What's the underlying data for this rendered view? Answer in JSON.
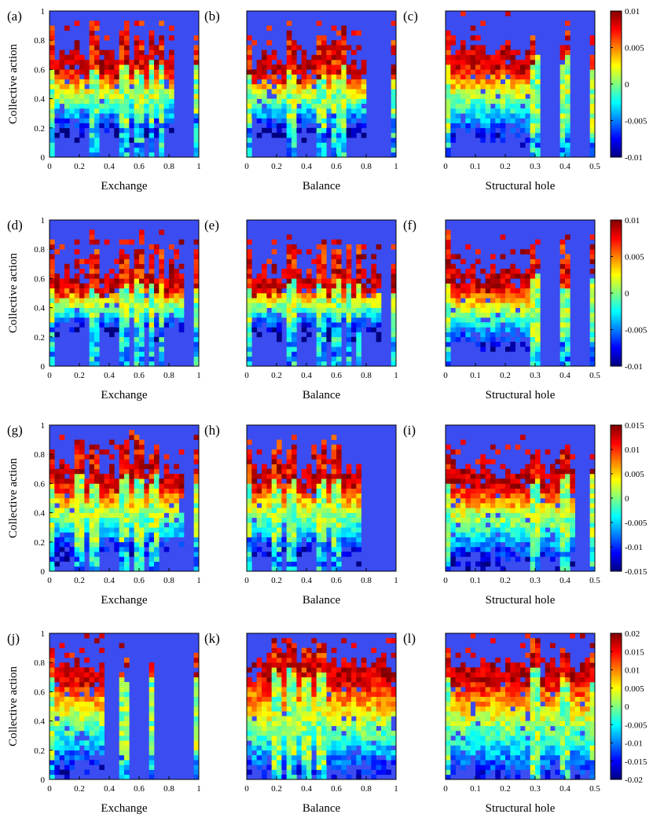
{
  "figure": {
    "background": "#ffffff",
    "plot_background": "#3b4cf0"
  },
  "colormap": "jet",
  "chart_data": [
    {
      "panel": "(a)",
      "type": "heatmap",
      "row": 0,
      "col": 0,
      "xlabel": "Exchange",
      "ylabel": "Collective action",
      "xlim": [
        0,
        1
      ],
      "ylim": [
        0,
        1
      ],
      "xticks": [
        "0",
        "0.2",
        "0.4",
        "0.6",
        "0.8",
        "1"
      ],
      "yticks": [
        "0",
        "0.2",
        "0.4",
        "0.6",
        "0.8",
        "1"
      ],
      "colorbar": {
        "min": -0.01,
        "max": 0.01,
        "ticks": [
          "0.01",
          "0.005",
          "0",
          "-0.005",
          "-0.01"
        ]
      },
      "pattern": {
        "band_top": 0.62,
        "band_center": 0.45,
        "band_bottom": 0.25,
        "x_extent": 0.82,
        "seed": 11
      },
      "spikes": [
        0.02,
        0.3,
        0.5,
        0.6,
        0.67,
        0.75,
        1.0
      ]
    },
    {
      "panel": "(b)",
      "type": "heatmap",
      "row": 0,
      "col": 1,
      "xlabel": "Balance",
      "ylabel": "",
      "xlim": [
        0,
        1
      ],
      "ylim": [
        0,
        1
      ],
      "xticks": [
        "0",
        "0.2",
        "0.4",
        "0.6",
        "0.8",
        "1"
      ],
      "yticks": [],
      "pattern": {
        "band_top": 0.6,
        "band_center": 0.45,
        "band_bottom": 0.25,
        "x_extent": 0.8,
        "seed": 23
      },
      "spikes": [
        0.02,
        0.3,
        0.5,
        0.6,
        0.66,
        1.0
      ]
    },
    {
      "panel": "(c)",
      "type": "heatmap",
      "row": 0,
      "col": 2,
      "xlabel": "Structural hole",
      "ylabel": "",
      "xlim": [
        0,
        0.5
      ],
      "ylim": [
        0,
        1
      ],
      "xticks": [
        "0",
        "0.1",
        "0.2",
        "0.3",
        "0.4",
        "0.5"
      ],
      "yticks": [],
      "pattern": {
        "band_top": 0.66,
        "band_center": 0.45,
        "band_bottom": 0.2,
        "x_extent": 0.3,
        "seed": 31
      },
      "spikes": [
        0.0,
        0.3,
        0.4,
        0.5
      ]
    },
    {
      "panel": "(d)",
      "type": "heatmap",
      "row": 1,
      "col": 0,
      "xlabel": "Exchange",
      "ylabel": "Collective action",
      "xlim": [
        0,
        1
      ],
      "ylim": [
        0,
        1
      ],
      "xticks": [
        "0",
        "0.2",
        "0.4",
        "0.6",
        "0.8",
        "1"
      ],
      "yticks": [
        "0",
        "0.2",
        "0.4",
        "0.6",
        "0.8",
        "1"
      ],
      "colorbar": {
        "min": -0.01,
        "max": 0.01,
        "ticks": [
          "0.01",
          "0.005",
          "0",
          "-0.005",
          "-0.01"
        ]
      },
      "pattern": {
        "band_top": 0.56,
        "band_center": 0.45,
        "band_bottom": 0.3,
        "x_extent": 0.9,
        "seed": 47
      },
      "spikes": [
        0.02,
        0.3,
        0.5,
        0.6,
        0.67,
        0.75,
        1.0
      ]
    },
    {
      "panel": "(e)",
      "type": "heatmap",
      "row": 1,
      "col": 1,
      "xlabel": "Balance",
      "ylabel": "",
      "xlim": [
        0,
        1
      ],
      "ylim": [
        0,
        1
      ],
      "xticks": [
        "0",
        "0.2",
        "0.4",
        "0.6",
        "0.8",
        "1"
      ],
      "yticks": [],
      "pattern": {
        "band_top": 0.56,
        "band_center": 0.45,
        "band_bottom": 0.3,
        "x_extent": 0.9,
        "seed": 53
      },
      "spikes": [
        0.02,
        0.3,
        0.5,
        0.6,
        0.67,
        0.75,
        1.0
      ]
    },
    {
      "panel": "(f)",
      "type": "heatmap",
      "row": 1,
      "col": 2,
      "xlabel": "Structural hole",
      "ylabel": "",
      "xlim": [
        0,
        0.5
      ],
      "ylim": [
        0,
        1
      ],
      "xticks": [
        "0",
        "0.1",
        "0.2",
        "0.3",
        "0.4",
        "0.5"
      ],
      "yticks": [],
      "pattern": {
        "band_top": 0.58,
        "band_center": 0.45,
        "band_bottom": 0.2,
        "x_extent": 0.3,
        "seed": 61
      },
      "spikes": [
        0.0,
        0.3,
        0.4,
        0.5
      ]
    },
    {
      "panel": "(g)",
      "type": "heatmap",
      "row": 2,
      "col": 0,
      "xlabel": "Exchange",
      "ylabel": "Collective action",
      "xlim": [
        0,
        1
      ],
      "ylim": [
        0,
        1
      ],
      "xticks": [
        "0",
        "0.2",
        "0.4",
        "0.6",
        "0.8",
        "1"
      ],
      "yticks": [
        "0",
        "0.2",
        "0.4",
        "0.6",
        "0.8",
        "1"
      ],
      "colorbar": {
        "min": -0.015,
        "max": 0.015,
        "ticks": [
          "0.015",
          "0.01",
          "0.005",
          "0",
          "-0.005",
          "-0.01",
          "-0.015"
        ]
      },
      "pattern": {
        "band_top": 0.62,
        "band_center": 0.42,
        "band_bottom": 0.2,
        "x_extent": 0.9,
        "seed": 71
      },
      "spikes": [
        0.02,
        0.2,
        0.3,
        0.5,
        0.6,
        0.7,
        1.0
      ]
    },
    {
      "panel": "(h)",
      "type": "heatmap",
      "row": 2,
      "col": 1,
      "xlabel": "Balance",
      "ylabel": "",
      "xlim": [
        0,
        1
      ],
      "ylim": [
        0,
        1
      ],
      "xticks": [
        "0",
        "0.2",
        "0.4",
        "0.6",
        "0.8",
        "1"
      ],
      "yticks": [],
      "pattern": {
        "band_top": 0.62,
        "band_center": 0.42,
        "band_bottom": 0.2,
        "x_extent": 0.75,
        "seed": 83
      },
      "spikes": [
        0.02,
        0.2,
        0.3,
        0.5,
        0.6
      ]
    },
    {
      "panel": "(i)",
      "type": "heatmap",
      "row": 2,
      "col": 2,
      "xlabel": "Structural hole",
      "ylabel": "",
      "xlim": [
        0,
        0.5
      ],
      "ylim": [
        0,
        1
      ],
      "xticks": [
        "0",
        "0.1",
        "0.2",
        "0.3",
        "0.4",
        "0.5"
      ],
      "yticks": [],
      "pattern": {
        "band_top": 0.62,
        "band_center": 0.42,
        "band_bottom": 0.15,
        "x_extent": 0.44,
        "seed": 97
      },
      "spikes": [
        0.0,
        0.3,
        0.4,
        0.5
      ]
    },
    {
      "panel": "(j)",
      "type": "heatmap",
      "row": 3,
      "col": 0,
      "xlabel": "Exchange",
      "ylabel": "Collective action",
      "xlim": [
        0,
        1
      ],
      "ylim": [
        0,
        1
      ],
      "xticks": [
        "0",
        "0.2",
        "0.4",
        "0.6",
        "0.8",
        "1"
      ],
      "yticks": [
        "0",
        "0.2",
        "0.4",
        "0.6",
        "0.8",
        "1"
      ],
      "colorbar": {
        "min": -0.02,
        "max": 0.02,
        "ticks": [
          "0.02",
          "0.015",
          "0.01",
          "0.005",
          "0",
          "-0.005",
          "-0.01",
          "-0.015",
          "-0.02"
        ]
      },
      "pattern": {
        "band_top": 0.72,
        "band_center": 0.38,
        "band_bottom": 0.15,
        "x_extent": 0.35,
        "seed": 101
      },
      "spikes": [
        0.02,
        0.5,
        0.67,
        1.0
      ]
    },
    {
      "panel": "(k)",
      "type": "heatmap",
      "row": 3,
      "col": 1,
      "xlabel": "Balance",
      "ylabel": "",
      "xlim": [
        0,
        1
      ],
      "ylim": [
        0,
        1
      ],
      "xticks": [
        "0",
        "0.2",
        "0.4",
        "0.6",
        "0.8",
        "1"
      ],
      "yticks": [],
      "pattern": {
        "band_top": 0.72,
        "band_center": 0.4,
        "band_bottom": 0.1,
        "x_extent": 1.0,
        "seed": 113
      },
      "spikes": [
        0.2,
        0.3,
        0.4,
        0.5
      ]
    },
    {
      "panel": "(l)",
      "type": "heatmap",
      "row": 3,
      "col": 2,
      "xlabel": "Structural hole",
      "ylabel": "",
      "xlim": [
        0,
        0.5
      ],
      "ylim": [
        0,
        1
      ],
      "xticks": [
        "0",
        "0.1",
        "0.2",
        "0.3",
        "0.4",
        "0.5"
      ],
      "yticks": [],
      "pattern": {
        "band_top": 0.72,
        "band_center": 0.4,
        "band_bottom": 0.1,
        "x_extent": 0.5,
        "seed": 127
      },
      "spikes": [
        0.0,
        0.3,
        0.4,
        0.5
      ]
    }
  ]
}
